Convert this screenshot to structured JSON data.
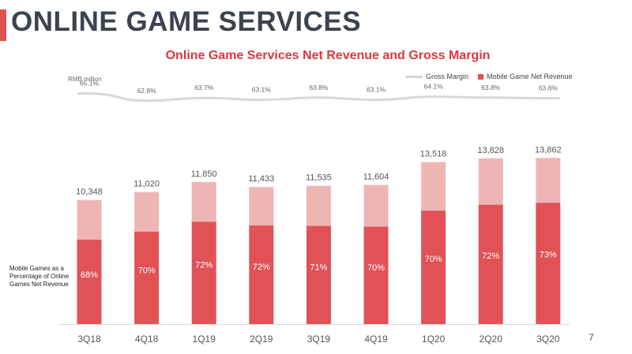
{
  "page": {
    "title": "ONLINE GAME SERVICES",
    "page_number": "7",
    "side_note": "Mobile Games as a Percentage of Online Games Net Revenue",
    "colors": {
      "accent": "#e05050",
      "title": "#3a4450",
      "chart_title": "#e0363e"
    }
  },
  "chart_data": {
    "type": "bar",
    "stacked": true,
    "title": "Online Game Services Net Revenue and Gross Margin",
    "unit_label": "RMB million",
    "categories": [
      "3Q18",
      "4Q18",
      "1Q19",
      "2Q19",
      "3Q19",
      "4Q19",
      "1Q20",
      "2Q20",
      "3Q20"
    ],
    "total_labels": [
      "10,348",
      "11,020",
      "11,850",
      "11,433",
      "11,535",
      "11,604",
      "13,518",
      "13,828",
      "13,862"
    ],
    "totals": [
      10348,
      11020,
      11850,
      11433,
      11535,
      11604,
      13518,
      13828,
      13862
    ],
    "mobile_share_labels": [
      "68%",
      "70%",
      "72%",
      "72%",
      "71%",
      "70%",
      "70%",
      "72%",
      "73%"
    ],
    "mobile_share": [
      0.68,
      0.7,
      0.72,
      0.72,
      0.71,
      0.7,
      0.7,
      0.72,
      0.73
    ],
    "gross_margin_labels": [
      "65.1%",
      "62.8%",
      "63.7%",
      "63.1%",
      "63.8%",
      "63.1%",
      "64.1%",
      "63.8%",
      "63.6%"
    ],
    "gross_margin": [
      65.1,
      62.8,
      63.7,
      63.1,
      63.8,
      63.1,
      64.1,
      63.8,
      63.6
    ],
    "series": [
      {
        "name": "Mobile Game Net Revenue",
        "color": "#e05256"
      },
      {
        "name": "",
        "color": "#efb5b5"
      }
    ],
    "line_series": {
      "name": "Gross Margin",
      "color": "#d9d9d9"
    },
    "legend": [
      "Gross Margin",
      "Mobile Game Net Revenue"
    ],
    "legend_position": "top-right"
  }
}
